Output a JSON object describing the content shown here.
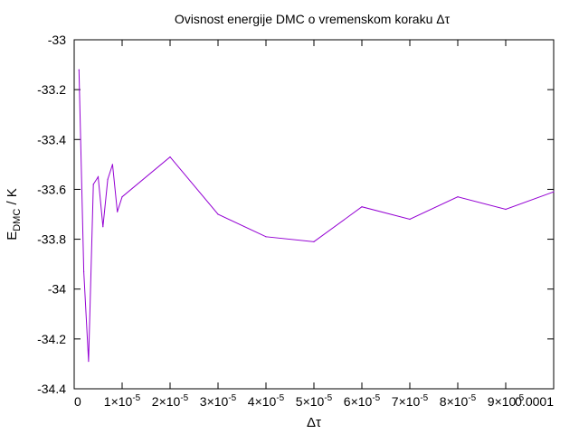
{
  "chart_data": {
    "type": "line",
    "title": "Ovisnost energije DMC o vremenskom koraku Δτ",
    "xlabel": "Δτ",
    "ylabel": {
      "main": "E",
      "subscript": "DMC",
      "suffix": " / K"
    },
    "xlim": [
      0,
      0.0001
    ],
    "ylim": [
      -34.4,
      -33
    ],
    "grid": false,
    "legend": "none",
    "series_color": "#9400d3",
    "x_ticks": [
      {
        "value": 0,
        "label": "0"
      },
      {
        "value": 1e-05,
        "mantissa": "1",
        "base": "×10",
        "exponent": "-5"
      },
      {
        "value": 2e-05,
        "mantissa": "2",
        "base": "×10",
        "exponent": "-5"
      },
      {
        "value": 3e-05,
        "mantissa": "3",
        "base": "×10",
        "exponent": "-5"
      },
      {
        "value": 4e-05,
        "mantissa": "4",
        "base": "×10",
        "exponent": "-5"
      },
      {
        "value": 5e-05,
        "mantissa": "5",
        "base": "×10",
        "exponent": "-5"
      },
      {
        "value": 6e-05,
        "mantissa": "6",
        "base": "×10",
        "exponent": "-5"
      },
      {
        "value": 7e-05,
        "mantissa": "7",
        "base": "×10",
        "exponent": "-5"
      },
      {
        "value": 8e-05,
        "mantissa": "8",
        "base": "×10",
        "exponent": "-5"
      },
      {
        "value": 9e-05,
        "mantissa": "9",
        "base": "×10",
        "exponent": "-5"
      },
      {
        "value": 0.0001,
        "label": "0.0001"
      }
    ],
    "y_ticks": [
      {
        "value": -33,
        "label": "-33"
      },
      {
        "value": -33.2,
        "label": "-33.2"
      },
      {
        "value": -33.4,
        "label": "-33.4"
      },
      {
        "value": -33.6,
        "label": "-33.6"
      },
      {
        "value": -33.8,
        "label": "-33.8"
      },
      {
        "value": -34,
        "label": "-34"
      },
      {
        "value": -34.2,
        "label": "-34.2"
      },
      {
        "value": -34.4,
        "label": "-34.4"
      }
    ],
    "series": [
      {
        "x": [
          1e-06,
          2e-06,
          3e-06,
          4e-06,
          5e-06,
          6e-06,
          7e-06,
          8e-06,
          9e-06,
          1e-05,
          2e-05,
          3e-05,
          4e-05,
          5e-05,
          6e-05,
          7e-05,
          8e-05,
          9e-05,
          0.0001
        ],
        "y": [
          -33.12,
          -33.93,
          -34.29,
          -33.58,
          -33.55,
          -33.75,
          -33.56,
          -33.5,
          -33.69,
          -33.63,
          -33.47,
          -33.7,
          -33.79,
          -33.81,
          -33.67,
          -33.72,
          -33.63,
          -33.68,
          -33.61
        ]
      }
    ]
  }
}
